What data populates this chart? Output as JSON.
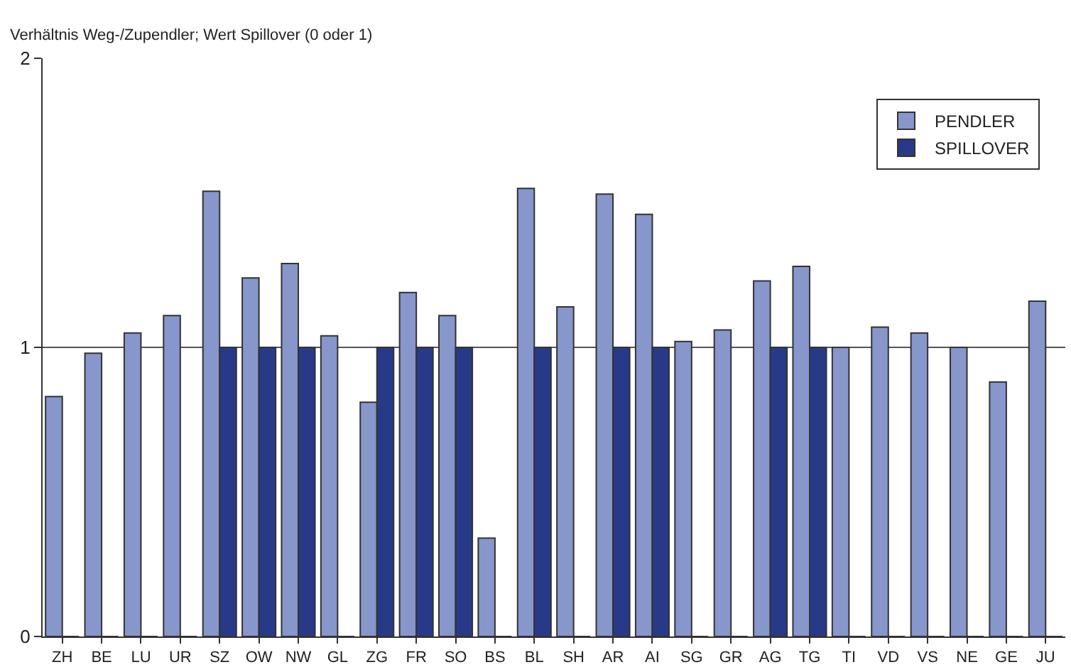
{
  "chart_data": {
    "type": "bar",
    "ylabel": "Verhältnis Weg-/Zupendler; Wert Spillover (0 oder 1)",
    "categories": [
      "ZH",
      "BE",
      "LU",
      "UR",
      "SZ",
      "OW",
      "NW",
      "GL",
      "ZG",
      "FR",
      "SO",
      "BS",
      "BL",
      "SH",
      "AR",
      "AI",
      "SG",
      "GR",
      "AG",
      "TG",
      "TI",
      "VD",
      "VS",
      "NE",
      "GE",
      "JU"
    ],
    "series": [
      {
        "name": "PENDLER",
        "color": "#8796cb",
        "values": [
          0.83,
          0.98,
          1.05,
          1.11,
          1.54,
          1.24,
          1.29,
          1.04,
          0.81,
          1.19,
          1.11,
          0.34,
          1.55,
          1.14,
          1.53,
          1.46,
          1.02,
          1.06,
          1.23,
          1.28,
          1.0,
          1.07,
          1.05,
          1.0,
          0.88,
          1.16
        ]
      },
      {
        "name": "SPILLOVER",
        "color": "#283a87",
        "values": [
          0,
          0,
          0,
          0,
          1,
          1,
          1,
          0,
          1,
          1,
          1,
          0,
          1,
          0,
          1,
          1,
          0,
          0,
          1,
          1,
          0,
          0,
          0,
          0,
          0,
          0
        ]
      }
    ],
    "ylim": [
      0,
      2
    ],
    "yticks": [
      0,
      1,
      2
    ],
    "grid": "y",
    "legend": "top right"
  }
}
